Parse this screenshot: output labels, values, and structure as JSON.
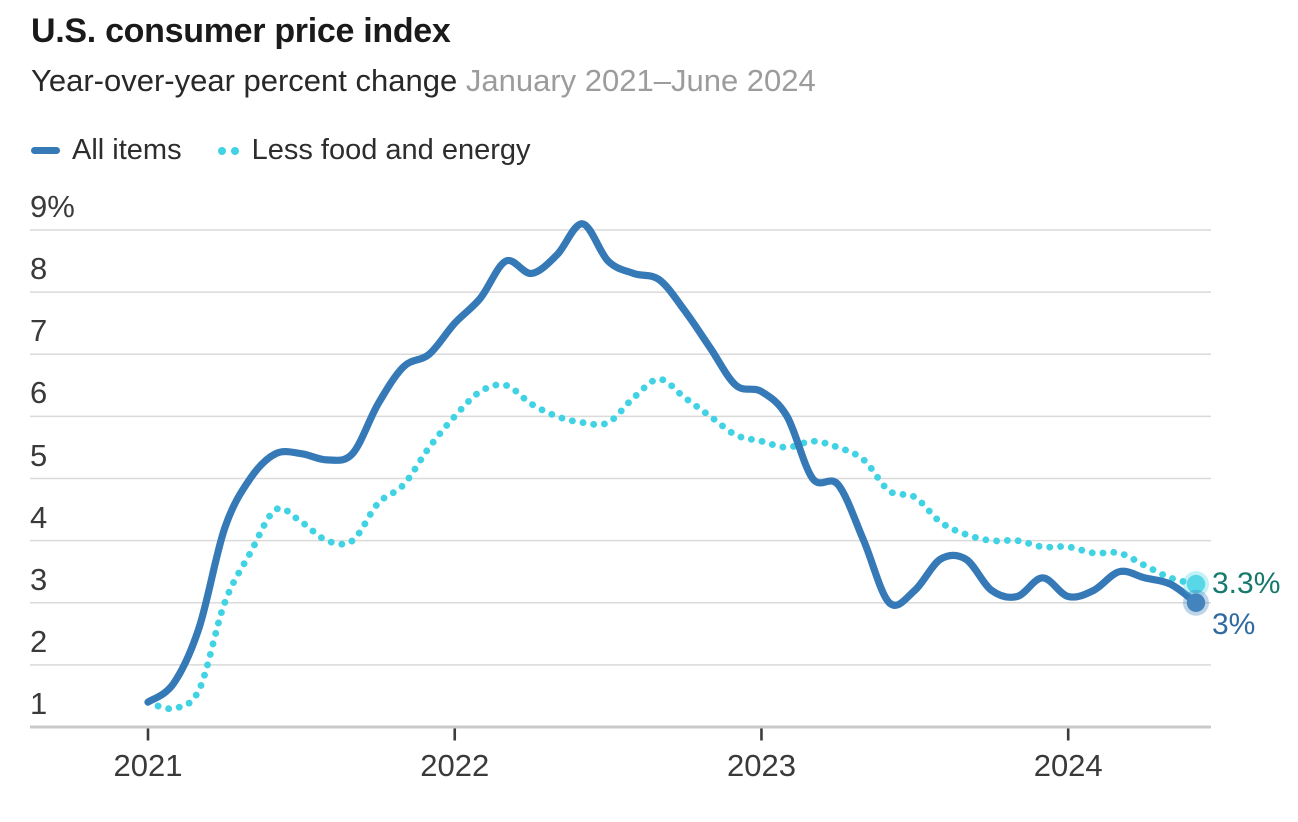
{
  "header": {
    "title": "U.S. consumer price index",
    "subtitle": "Year-over-year percent change",
    "subtitle_range": "January 2021–June 2024"
  },
  "legend": {
    "items": [
      {
        "label": "All items",
        "style": "solid",
        "color": "#3579b7"
      },
      {
        "label": "Less food and energy",
        "style": "dotted",
        "color": "#41d2e3"
      }
    ]
  },
  "axes": {
    "y_ticks": [
      {
        "label": "9%",
        "value": 9
      },
      {
        "label": "8",
        "value": 8
      },
      {
        "label": "7",
        "value": 7
      },
      {
        "label": "6",
        "value": 6
      },
      {
        "label": "5",
        "value": 5
      },
      {
        "label": "4",
        "value": 4
      },
      {
        "label": "3",
        "value": 3
      },
      {
        "label": "2",
        "value": 2
      },
      {
        "label": "1",
        "value": 1
      }
    ],
    "x_ticks": [
      {
        "label": "2021",
        "month_index": 0
      },
      {
        "label": "2022",
        "month_index": 12
      },
      {
        "label": "2023",
        "month_index": 24
      },
      {
        "label": "2024",
        "month_index": 36
      }
    ]
  },
  "end_labels": [
    {
      "text": "3.3%",
      "color": "#17796e",
      "series": "Less food and energy",
      "value": 3.3
    },
    {
      "text": "3%",
      "color": "#2f6b9f",
      "series": "All items",
      "value": 3.0
    }
  ],
  "colors": {
    "gridline": "#dadada",
    "axis_line": "#c9c9c9",
    "tick_mark": "#3c3c3c",
    "all_items_line": "#3579b7",
    "core_line": "#41d2e3"
  },
  "chart_data": {
    "type": "line",
    "title": "U.S. consumer price index",
    "subtitle": "Year-over-year percent change",
    "date_range": "January 2021–June 2024",
    "xlabel": "",
    "ylabel": "",
    "ylim": [
      1,
      9
    ],
    "grid": true,
    "legend_position": "top-left",
    "x": [
      "Jan 2021",
      "Feb 2021",
      "Mar 2021",
      "Apr 2021",
      "May 2021",
      "Jun 2021",
      "Jul 2021",
      "Aug 2021",
      "Sep 2021",
      "Oct 2021",
      "Nov 2021",
      "Dec 2021",
      "Jan 2022",
      "Feb 2022",
      "Mar 2022",
      "Apr 2022",
      "May 2022",
      "Jun 2022",
      "Jul 2022",
      "Aug 2022",
      "Sep 2022",
      "Oct 2022",
      "Nov 2022",
      "Dec 2022",
      "Jan 2023",
      "Feb 2023",
      "Mar 2023",
      "Apr 2023",
      "May 2023",
      "Jun 2023",
      "Jul 2023",
      "Aug 2023",
      "Sep 2023",
      "Oct 2023",
      "Nov 2023",
      "Dec 2023",
      "Jan 2024",
      "Feb 2024",
      "Mar 2024",
      "Apr 2024",
      "May 2024",
      "Jun 2024"
    ],
    "series": [
      {
        "name": "All items",
        "style": "solid",
        "color": "#3579b7",
        "values": [
          1.4,
          1.7,
          2.6,
          4.2,
          5.0,
          5.4,
          5.4,
          5.3,
          5.4,
          6.2,
          6.8,
          7.0,
          7.5,
          7.9,
          8.5,
          8.3,
          8.6,
          9.1,
          8.5,
          8.3,
          8.2,
          7.7,
          7.1,
          6.5,
          6.4,
          6.0,
          5.0,
          4.9,
          4.0,
          3.0,
          3.2,
          3.7,
          3.7,
          3.2,
          3.1,
          3.4,
          3.1,
          3.2,
          3.5,
          3.4,
          3.3,
          3.0
        ]
      },
      {
        "name": "Less food and energy",
        "style": "dotted",
        "color": "#41d2e3",
        "values": [
          1.4,
          1.3,
          1.6,
          3.0,
          3.8,
          4.5,
          4.3,
          4.0,
          4.0,
          4.6,
          4.9,
          5.5,
          6.0,
          6.4,
          6.5,
          6.2,
          6.0,
          5.9,
          5.9,
          6.3,
          6.6,
          6.3,
          6.0,
          5.7,
          5.6,
          5.5,
          5.6,
          5.5,
          5.3,
          4.8,
          4.7,
          4.3,
          4.1,
          4.0,
          4.0,
          3.9,
          3.9,
          3.8,
          3.8,
          3.6,
          3.4,
          3.3
        ]
      }
    ]
  }
}
